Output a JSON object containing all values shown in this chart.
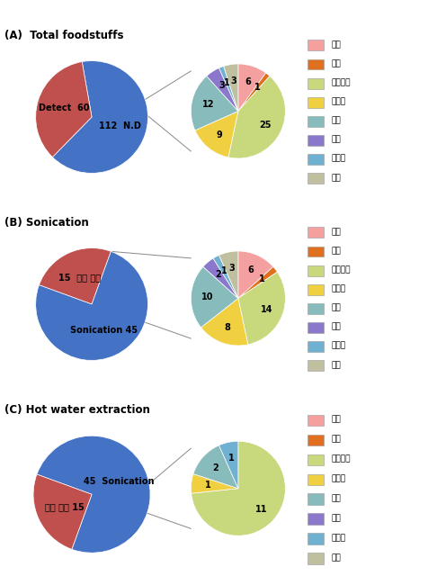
{
  "panel_titles": [
    "(A)  Total foodstuffs",
    "(B) Sonication",
    "(C) Hot water extraction"
  ],
  "main_pie_A": {
    "values": [
      112,
      60
    ],
    "labels": [
      "N.D",
      "Detect"
    ],
    "colors": [
      "#4472C4",
      "#C0504D"
    ],
    "startangle": 100,
    "label_r": [
      0.52,
      0.52
    ],
    "label_texts": [
      "112  N.D",
      "Detect  60"
    ]
  },
  "main_pie_B": {
    "values": [
      15,
      45
    ],
    "labels": [
      "열수 추출",
      "Sonication"
    ],
    "colors": [
      "#C0504D",
      "#4472C4"
    ],
    "startangle": 160,
    "label_r": [
      0.52,
      0.52
    ],
    "label_texts": [
      "15  열수 추출",
      "Sonication 45"
    ]
  },
  "main_pie_C": {
    "values": [
      45,
      15
    ],
    "labels": [
      "Sonication",
      "열수 추출"
    ],
    "colors": [
      "#4472C4",
      "#C0504D"
    ],
    "startangle": 160,
    "label_r": [
      0.52,
      0.52
    ],
    "label_texts": [
      "45  Sonication",
      "열수 추출 15"
    ]
  },
  "detail_pie_A": {
    "values": [
      6,
      1,
      25,
      9,
      12,
      3,
      1,
      3
    ],
    "colors": [
      "#F4A0A0",
      "#E07020",
      "#C8D87C",
      "#F0D040",
      "#88BBBB",
      "#8B78CC",
      "#70B0D0",
      "#C0C0A0"
    ],
    "startangle": 90,
    "connect_wedge_idx": 1
  },
  "detail_pie_B": {
    "values": [
      6,
      1,
      14,
      8,
      10,
      2,
      1,
      3
    ],
    "colors": [
      "#F4A0A0",
      "#E07020",
      "#C8D87C",
      "#F0D040",
      "#88BBBB",
      "#8B78CC",
      "#70B0D0",
      "#C0C0A0"
    ],
    "startangle": 90,
    "connect_wedge_idx": 1
  },
  "detail_pie_C": {
    "values": [
      0,
      0,
      11,
      1,
      2,
      0,
      1,
      0
    ],
    "colors": [
      "#F4A0A0",
      "#E07020",
      "#C8D87C",
      "#F0D040",
      "#88BBBB",
      "#8B78CC",
      "#70B0D0",
      "#C0C0A0"
    ],
    "startangle": 90,
    "connect_wedge_idx": 2
  },
  "legend_labels": [
    "국화",
    "감국",
    "캐모마일",
    "나물류",
    "지치",
    "화분",
    "허브차",
    "콩류"
  ],
  "legend_colors": [
    "#F4A0A0",
    "#E07020",
    "#C8D87C",
    "#F0D040",
    "#88BBBB",
    "#8B78CC",
    "#70B0D0",
    "#C0C0A0"
  ]
}
